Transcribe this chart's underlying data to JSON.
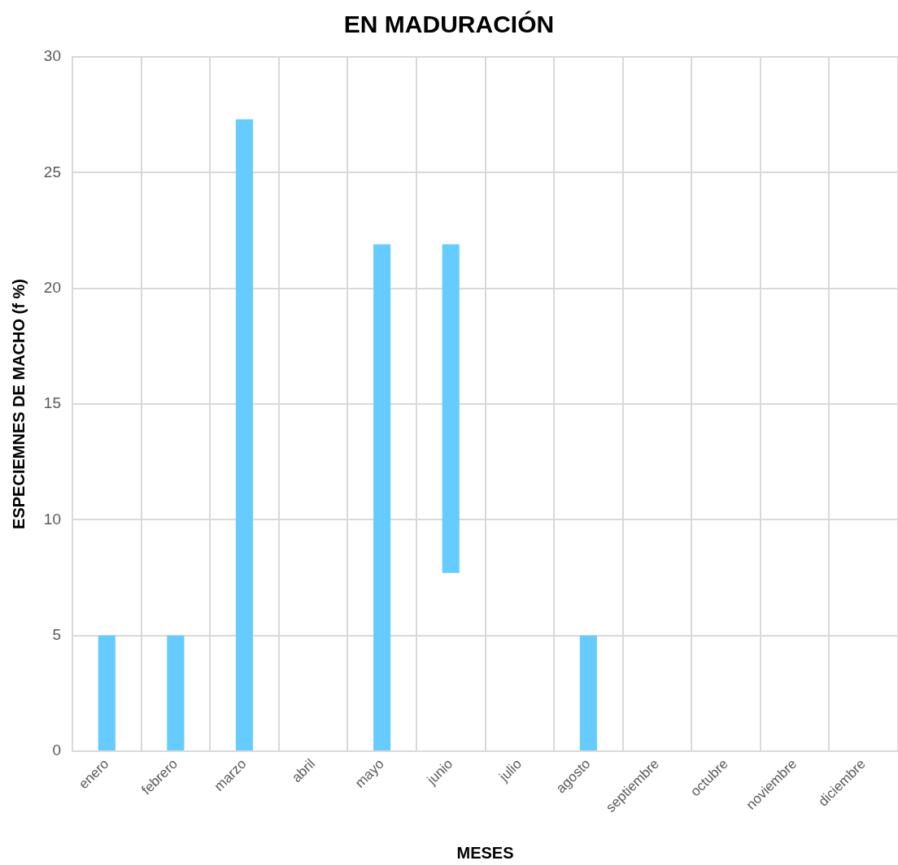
{
  "chart_data": {
    "type": "bar",
    "title": "EN MADURACIÓN",
    "xlabel": "MESES",
    "ylabel": "ESPECIEMNES DE MACHO (f %)",
    "categories": [
      "enero",
      "febrero",
      "marzo",
      "abril",
      "mayo",
      "junio",
      "julio",
      "agosto",
      "septiembre",
      "octubre",
      "noviembre",
      "diciembre"
    ],
    "values": [
      5,
      5,
      27.3,
      null,
      21.9,
      14.2,
      null,
      5,
      null,
      null,
      null,
      null
    ],
    "base": [
      0,
      0,
      0,
      null,
      0,
      7.7,
      null,
      0,
      null,
      null,
      null,
      null
    ],
    "color": "#66ccff",
    "ylim": [
      0,
      30
    ],
    "yticks": [
      0,
      5,
      10,
      15,
      20,
      25,
      30
    ],
    "grid": true
  }
}
